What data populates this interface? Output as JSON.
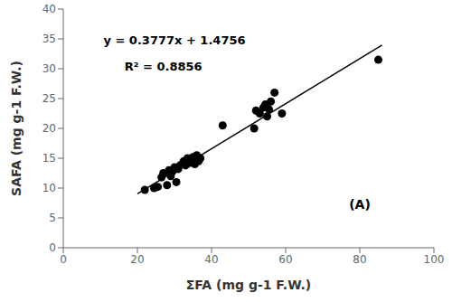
{
  "chart_data": {
    "type": "scatter",
    "xlabel": "ΣFA (mg g-1 F.W.)",
    "ylabel": "SAFA (mg g-1 F.W.)",
    "xlim": [
      0,
      100
    ],
    "ylim": [
      0,
      40
    ],
    "xticks": [
      0,
      20,
      40,
      60,
      80,
      100
    ],
    "yticks": [
      0,
      5,
      10,
      15,
      20,
      25,
      30,
      35,
      40
    ],
    "series": [
      {
        "type": "scatter",
        "marker": "circle",
        "color": "#000000",
        "x": [
          22.0,
          24.5,
          25.5,
          26.5,
          27.0,
          28.0,
          28.5,
          29.0,
          29.5,
          30.0,
          30.5,
          31.0,
          31.5,
          32.0,
          32.5,
          33.0,
          33.5,
          34.0,
          34.5,
          35.0,
          35.5,
          36.0,
          36.5,
          37.0,
          43.0,
          51.5,
          52.0,
          53.0,
          54.0,
          54.5,
          55.0,
          55.5,
          56.0,
          57.0,
          59.0,
          85.0
        ],
        "values": [
          9.7,
          10.0,
          10.2,
          11.8,
          12.5,
          10.5,
          13.0,
          12.0,
          12.8,
          13.5,
          11.0,
          13.2,
          13.8,
          14.0,
          14.5,
          13.8,
          15.0,
          14.2,
          14.8,
          15.2,
          14.0,
          15.5,
          14.5,
          15.0,
          20.5,
          20.0,
          23.0,
          22.5,
          23.5,
          24.0,
          22.0,
          23.2,
          24.5,
          26.0,
          22.5,
          31.5
        ]
      },
      {
        "type": "line",
        "line_style": "solid",
        "color": "#000000",
        "x": [
          20,
          86
        ],
        "values": [
          9.0296,
          33.9578
        ]
      }
    ],
    "annotations": [
      "y = 0.3777x + 1.4756",
      "R² = 0.8856",
      "(A)"
    ]
  }
}
